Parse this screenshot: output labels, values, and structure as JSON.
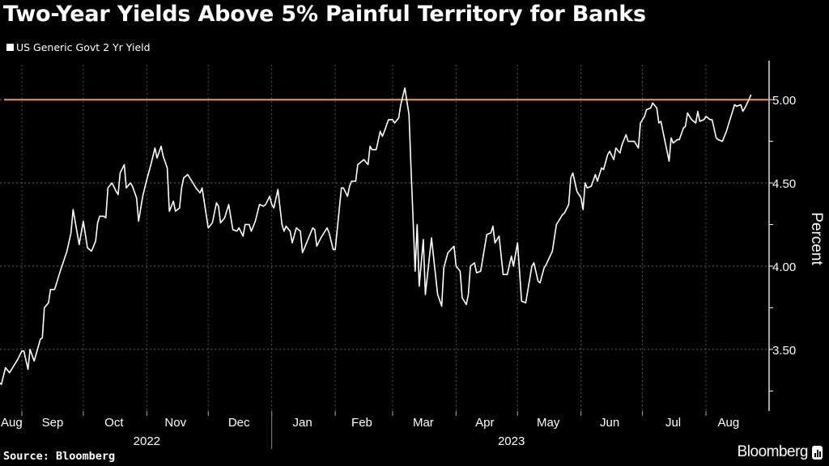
{
  "title": "Two-Year Yields Above 5% Painful Territory for Banks",
  "source": "Source: Bloomberg",
  "brand": "Bloomberg",
  "chart_data": {
    "type": "line",
    "title": "Two-Year Yields Above 5% Painful Territory for Banks",
    "ylabel": "Percent",
    "xlabel": "",
    "ylim": [
      3.13,
      5.21
    ],
    "y_axis_side": "right",
    "yticks": [
      "5.00",
      "4.50",
      "4.00",
      "3.50"
    ],
    "ytick_values": [
      5.0,
      4.5,
      4.0,
      3.5
    ],
    "x_month_labels": [
      {
        "label": "Aug",
        "date": "2022-08-27"
      },
      {
        "label": "Sep",
        "date": "2022-09-16"
      },
      {
        "label": "Oct",
        "date": "2022-10-16"
      },
      {
        "label": "Nov",
        "date": "2022-11-15"
      },
      {
        "label": "Dec",
        "date": "2022-12-16"
      },
      {
        "label": "Jan",
        "date": "2023-01-16"
      },
      {
        "label": "Feb",
        "date": "2023-02-14"
      },
      {
        "label": "Mar",
        "date": "2023-03-16"
      },
      {
        "label": "Apr",
        "date": "2023-04-15"
      },
      {
        "label": "May",
        "date": "2023-05-16"
      },
      {
        "label": "Jun",
        "date": "2023-06-15"
      },
      {
        "label": "Jul",
        "date": "2023-07-16"
      },
      {
        "label": "Aug",
        "date": "2023-08-12"
      }
    ],
    "x_years": [
      {
        "label": "2022",
        "date": "2022-11-01"
      },
      {
        "label": "2023",
        "date": "2023-04-28"
      }
    ],
    "grid": true,
    "legend_position": "top-left",
    "reference_line": {
      "value": 5.0,
      "color": "#f59b42"
    },
    "series": [
      {
        "name": "US Generic Govt 2 Yr Yield",
        "color": "#ffffff",
        "points": [
          [
            "2022-08-21",
            3.3
          ],
          [
            "2022-08-22",
            3.29
          ],
          [
            "2022-08-24",
            3.39
          ],
          [
            "2022-08-26",
            3.36
          ],
          [
            "2022-08-30",
            3.44
          ],
          [
            "2022-09-01",
            3.49
          ],
          [
            "2022-09-02",
            3.49
          ],
          [
            "2022-09-04",
            3.38
          ],
          [
            "2022-09-05",
            3.5
          ],
          [
            "2022-09-07",
            3.43
          ],
          [
            "2022-09-10",
            3.56
          ],
          [
            "2022-09-11",
            3.57
          ],
          [
            "2022-09-12",
            3.75
          ],
          [
            "2022-09-14",
            3.78
          ],
          [
            "2022-09-15",
            3.86
          ],
          [
            "2022-09-17",
            3.86
          ],
          [
            "2022-09-19",
            3.94
          ],
          [
            "2022-09-20",
            3.98
          ],
          [
            "2022-09-23",
            4.09
          ],
          [
            "2022-09-25",
            4.2
          ],
          [
            "2022-09-26",
            4.34
          ],
          [
            "2022-09-27",
            4.27
          ],
          [
            "2022-09-29",
            4.13
          ],
          [
            "2022-10-01",
            4.27
          ],
          [
            "2022-10-03",
            4.11
          ],
          [
            "2022-10-05",
            4.09
          ],
          [
            "2022-10-07",
            4.15
          ],
          [
            "2022-10-08",
            4.26
          ],
          [
            "2022-10-09",
            4.3
          ],
          [
            "2022-10-11",
            4.3
          ],
          [
            "2022-10-12",
            4.29
          ],
          [
            "2022-10-13",
            4.47
          ],
          [
            "2022-10-15",
            4.5
          ],
          [
            "2022-10-17",
            4.45
          ],
          [
            "2022-10-18",
            4.43
          ],
          [
            "2022-10-19",
            4.56
          ],
          [
            "2022-10-21",
            4.61
          ],
          [
            "2022-10-22",
            4.47
          ],
          [
            "2022-10-24",
            4.5
          ],
          [
            "2022-10-25",
            4.48
          ],
          [
            "2022-10-27",
            4.41
          ],
          [
            "2022-10-28",
            4.27
          ],
          [
            "2022-10-30",
            4.42
          ],
          [
            "2022-11-01",
            4.52
          ],
          [
            "2022-11-03",
            4.61
          ],
          [
            "2022-11-05",
            4.71
          ],
          [
            "2022-11-06",
            4.65
          ],
          [
            "2022-11-08",
            4.72
          ],
          [
            "2022-11-09",
            4.66
          ],
          [
            "2022-11-11",
            4.59
          ],
          [
            "2022-11-12",
            4.33
          ],
          [
            "2022-11-14",
            4.39
          ],
          [
            "2022-11-15",
            4.33
          ],
          [
            "2022-11-17",
            4.35
          ],
          [
            "2022-11-18",
            4.47
          ],
          [
            "2022-11-19",
            4.53
          ],
          [
            "2022-11-21",
            4.55
          ],
          [
            "2022-11-23",
            4.51
          ],
          [
            "2022-11-25",
            4.47
          ],
          [
            "2022-11-27",
            4.44
          ],
          [
            "2022-11-28",
            4.47
          ],
          [
            "2022-11-30",
            4.31
          ],
          [
            "2022-12-01",
            4.23
          ],
          [
            "2022-12-03",
            4.26
          ],
          [
            "2022-12-05",
            4.38
          ],
          [
            "2022-12-06",
            4.36
          ],
          [
            "2022-12-07",
            4.26
          ],
          [
            "2022-12-09",
            4.29
          ],
          [
            "2022-12-11",
            4.37
          ],
          [
            "2022-12-13",
            4.22
          ],
          [
            "2022-12-15",
            4.21
          ],
          [
            "2022-12-16",
            4.23
          ],
          [
            "2022-12-18",
            4.18
          ],
          [
            "2022-12-19",
            4.25
          ],
          [
            "2022-12-21",
            4.25
          ],
          [
            "2022-12-22",
            4.21
          ],
          [
            "2022-12-24",
            4.27
          ],
          [
            "2022-12-26",
            4.37
          ],
          [
            "2022-12-28",
            4.36
          ],
          [
            "2022-12-29",
            4.37
          ],
          [
            "2022-12-31",
            4.42
          ],
          [
            "2023-01-01",
            4.37
          ],
          [
            "2023-01-02",
            4.35
          ],
          [
            "2023-01-04",
            4.46
          ],
          [
            "2023-01-06",
            4.25
          ],
          [
            "2023-01-07",
            4.21
          ],
          [
            "2023-01-08",
            4.24
          ],
          [
            "2023-01-10",
            4.21
          ],
          [
            "2023-01-11",
            4.14
          ],
          [
            "2023-01-13",
            4.23
          ],
          [
            "2023-01-15",
            4.21
          ],
          [
            "2023-01-16",
            4.08
          ],
          [
            "2023-01-18",
            4.14
          ],
          [
            "2023-01-21",
            4.23
          ],
          [
            "2023-01-22",
            4.22
          ],
          [
            "2023-01-23",
            4.12
          ],
          [
            "2023-01-25",
            4.17
          ],
          [
            "2023-01-28",
            4.23
          ],
          [
            "2023-01-29",
            4.2
          ],
          [
            "2023-01-31",
            4.1
          ],
          [
            "2023-02-01",
            4.1
          ],
          [
            "2023-02-04",
            4.47
          ],
          [
            "2023-02-05",
            4.47
          ],
          [
            "2023-02-07",
            4.42
          ],
          [
            "2023-02-08",
            4.48
          ],
          [
            "2023-02-09",
            4.51
          ],
          [
            "2023-02-11",
            4.51
          ],
          [
            "2023-02-12",
            4.61
          ],
          [
            "2023-02-15",
            4.64
          ],
          [
            "2023-02-17",
            4.61
          ],
          [
            "2023-02-18",
            4.72
          ],
          [
            "2023-02-19",
            4.7
          ],
          [
            "2023-02-21",
            4.7
          ],
          [
            "2023-02-23",
            4.81
          ],
          [
            "2023-02-24",
            4.78
          ],
          [
            "2023-02-25",
            4.81
          ],
          [
            "2023-02-27",
            4.88
          ],
          [
            "2023-03-01",
            4.88
          ],
          [
            "2023-03-02",
            4.86
          ],
          [
            "2023-03-04",
            4.89
          ],
          [
            "2023-03-05",
            4.97
          ],
          [
            "2023-03-07",
            5.07
          ],
          [
            "2023-03-09",
            4.91
          ],
          [
            "2023-03-10",
            4.59
          ],
          [
            "2023-03-12",
            3.97
          ],
          [
            "2023-03-13",
            4.25
          ],
          [
            "2023-03-14",
            3.88
          ],
          [
            "2023-03-16",
            4.16
          ],
          [
            "2023-03-17",
            3.83
          ],
          [
            "2023-03-20",
            4.17
          ],
          [
            "2023-03-22",
            3.94
          ],
          [
            "2023-03-23",
            3.83
          ],
          [
            "2023-03-25",
            3.76
          ],
          [
            "2023-03-26",
            3.99
          ],
          [
            "2023-03-28",
            4.08
          ],
          [
            "2023-03-31",
            4.12
          ],
          [
            "2023-04-01",
            4.0
          ],
          [
            "2023-04-03",
            3.97
          ],
          [
            "2023-04-04",
            3.81
          ],
          [
            "2023-04-06",
            3.77
          ],
          [
            "2023-04-07",
            3.83
          ],
          [
            "2023-04-08",
            4.0
          ],
          [
            "2023-04-10",
            4.02
          ],
          [
            "2023-04-11",
            3.96
          ],
          [
            "2023-04-13",
            3.97
          ],
          [
            "2023-04-16",
            4.19
          ],
          [
            "2023-04-18",
            4.2
          ],
          [
            "2023-04-19",
            4.24
          ],
          [
            "2023-04-20",
            4.14
          ],
          [
            "2023-04-22",
            4.18
          ],
          [
            "2023-04-24",
            3.95
          ],
          [
            "2023-04-26",
            3.95
          ],
          [
            "2023-04-28",
            4.06
          ],
          [
            "2023-04-29",
            4.0
          ],
          [
            "2023-05-01",
            4.14
          ],
          [
            "2023-05-03",
            3.79
          ],
          [
            "2023-05-05",
            3.78
          ],
          [
            "2023-05-08",
            4.0
          ],
          [
            "2023-05-09",
            4.02
          ],
          [
            "2023-05-11",
            3.91
          ],
          [
            "2023-05-12",
            3.9
          ],
          [
            "2023-05-14",
            3.99
          ],
          [
            "2023-05-15",
            4.01
          ],
          [
            "2023-05-18",
            4.09
          ],
          [
            "2023-05-20",
            4.25
          ],
          [
            "2023-05-21",
            4.27
          ],
          [
            "2023-05-23",
            4.31
          ],
          [
            "2023-05-24",
            4.32
          ],
          [
            "2023-05-26",
            4.37
          ],
          [
            "2023-05-27",
            4.53
          ],
          [
            "2023-05-28",
            4.56
          ],
          [
            "2023-05-30",
            4.45
          ],
          [
            "2023-06-01",
            4.41
          ],
          [
            "2023-06-02",
            4.34
          ],
          [
            "2023-06-03",
            4.5
          ],
          [
            "2023-06-04",
            4.47
          ],
          [
            "2023-06-06",
            4.48
          ],
          [
            "2023-06-08",
            4.55
          ],
          [
            "2023-06-09",
            4.51
          ],
          [
            "2023-06-11",
            4.59
          ],
          [
            "2023-06-12",
            4.58
          ],
          [
            "2023-06-14",
            4.67
          ],
          [
            "2023-06-15",
            4.69
          ],
          [
            "2023-06-17",
            4.64
          ],
          [
            "2023-06-18",
            4.71
          ],
          [
            "2023-06-20",
            4.68
          ],
          [
            "2023-06-21",
            4.73
          ],
          [
            "2023-06-23",
            4.79
          ],
          [
            "2023-06-24",
            4.75
          ],
          [
            "2023-06-25",
            4.75
          ],
          [
            "2023-06-27",
            4.75
          ],
          [
            "2023-06-29",
            4.71
          ],
          [
            "2023-06-30",
            4.86
          ],
          [
            "2023-07-02",
            4.9
          ],
          [
            "2023-07-03",
            4.94
          ],
          [
            "2023-07-05",
            4.95
          ],
          [
            "2023-07-06",
            4.98
          ],
          [
            "2023-07-08",
            4.95
          ],
          [
            "2023-07-09",
            4.86
          ],
          [
            "2023-07-10",
            4.87
          ],
          [
            "2023-07-12",
            4.75
          ],
          [
            "2023-07-14",
            4.63
          ],
          [
            "2023-07-15",
            4.77
          ],
          [
            "2023-07-16",
            4.74
          ],
          [
            "2023-07-18",
            4.76
          ],
          [
            "2023-07-19",
            4.76
          ],
          [
            "2023-07-21",
            4.83
          ],
          [
            "2023-07-22",
            4.84
          ],
          [
            "2023-07-23",
            4.92
          ],
          [
            "2023-07-25",
            4.88
          ],
          [
            "2023-07-27",
            4.86
          ],
          [
            "2023-07-28",
            4.93
          ],
          [
            "2023-07-29",
            4.87
          ],
          [
            "2023-07-31",
            4.88
          ],
          [
            "2023-08-01",
            4.9
          ],
          [
            "2023-08-03",
            4.88
          ],
          [
            "2023-08-04",
            4.88
          ],
          [
            "2023-08-06",
            4.77
          ],
          [
            "2023-08-07",
            4.76
          ],
          [
            "2023-08-09",
            4.75
          ],
          [
            "2023-08-11",
            4.81
          ],
          [
            "2023-08-12",
            4.85
          ],
          [
            "2023-08-15",
            4.97
          ],
          [
            "2023-08-16",
            4.96
          ],
          [
            "2023-08-18",
            4.97
          ],
          [
            "2023-08-19",
            4.93
          ],
          [
            "2023-08-20",
            4.95
          ],
          [
            "2023-08-22",
            5.0
          ],
          [
            "2023-08-23",
            5.03
          ]
        ]
      }
    ]
  }
}
